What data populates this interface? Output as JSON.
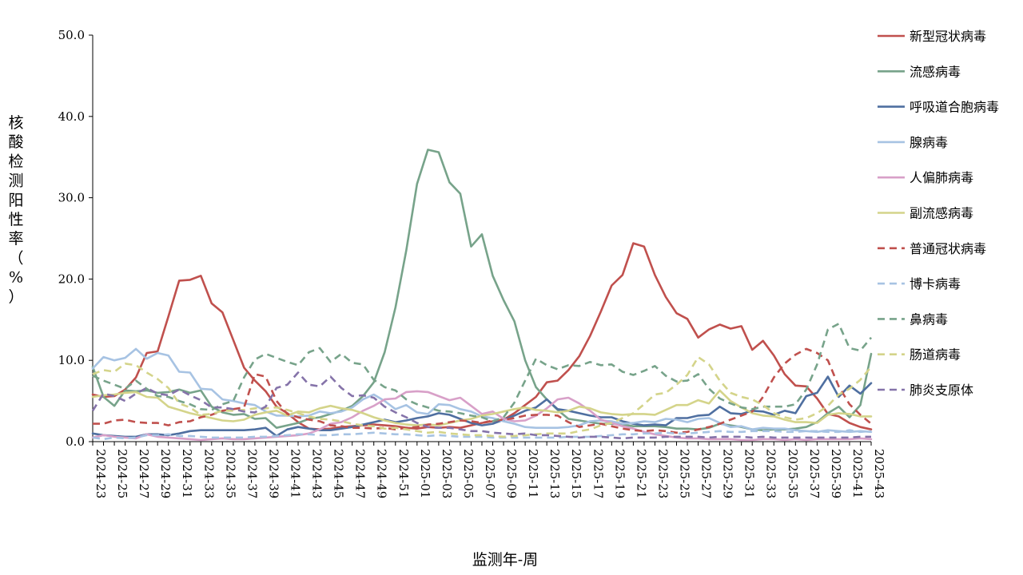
{
  "chart_data": {
    "type": "line",
    "xlabel": "监测年-周",
    "ylabel": "核酸检测阳性率（%）",
    "ylim": [
      0,
      50
    ],
    "yticks": [
      "0.0",
      "10.0",
      "20.0",
      "30.0",
      "40.0",
      "50.0"
    ],
    "grid": false,
    "legend_position": "right",
    "x": [
      "2024-23",
      "2024-24",
      "2024-25",
      "2024-26",
      "2024-27",
      "2024-28",
      "2024-29",
      "2024-30",
      "2024-31",
      "2024-32",
      "2024-33",
      "2024-34",
      "2024-35",
      "2024-36",
      "2024-37",
      "2024-38",
      "2024-39",
      "2024-40",
      "2024-41",
      "2024-42",
      "2024-43",
      "2024-44",
      "2024-45",
      "2024-46",
      "2024-47",
      "2024-48",
      "2024-49",
      "2024-50",
      "2024-51",
      "2024-52",
      "2025-01",
      "2025-02",
      "2025-03",
      "2025-04",
      "2025-05",
      "2025-06",
      "2025-07",
      "2025-08",
      "2025-09",
      "2025-10",
      "2025-11",
      "2025-12",
      "2025-13",
      "2025-14",
      "2025-15",
      "2025-16",
      "2025-17",
      "2025-18",
      "2025-19",
      "2025-20",
      "2025-21",
      "2025-22",
      "2025-23",
      "2025-24",
      "2025-25",
      "2025-26",
      "2025-27",
      "2025-28",
      "2025-29",
      "2025-30",
      "2025-31",
      "2025-32",
      "2025-33",
      "2025-34",
      "2025-35",
      "2025-36",
      "2025-37",
      "2025-38",
      "2025-39",
      "2025-40",
      "2025-41",
      "2025-42",
      "2025-43"
    ],
    "xtick_labels": [
      "2024-23",
      "2024-25",
      "2024-27",
      "2024-29",
      "2024-31",
      "2024-33",
      "2024-35",
      "2024-37",
      "2024-39",
      "2024-41",
      "2024-43",
      "2024-45",
      "2024-47",
      "2024-49",
      "2024-51",
      "2025-01",
      "2025-03",
      "2025-05",
      "2025-07",
      "2025-09",
      "2025-11",
      "2025-13",
      "2025-15",
      "2025-17",
      "2025-19",
      "2025-21",
      "2025-23",
      "2025-25",
      "2025-27",
      "2025-29",
      "2025-31",
      "2025-33",
      "2025-35",
      "2025-37",
      "2025-39",
      "2025-41",
      "2025-43"
    ],
    "series": [
      {
        "name": "新型冠状病毒",
        "color": "#c0504d",
        "dash": false,
        "values": [
          5.8,
          5.5,
          5.6,
          6.4,
          7.9,
          10.9,
          11.1,
          15.4,
          19.8,
          19.9,
          20.4,
          17.0,
          15.9,
          12.5,
          9.1,
          7.5,
          6.2,
          4.3,
          3.5,
          2.4,
          1.6,
          1.5,
          1.6,
          1.8,
          1.9,
          2.0,
          2.1,
          2.0,
          1.9,
          1.7,
          1.6,
          1.8,
          1.7,
          1.8,
          1.7,
          2.0,
          2.3,
          2.5,
          2.7,
          3.5,
          4.5,
          5.5,
          7.3,
          7.5,
          8.8,
          10.5,
          13.0,
          16.0,
          19.2,
          20.5,
          24.4,
          24.0,
          20.5,
          17.8,
          15.8,
          15.1,
          12.8,
          13.8,
          14.4,
          13.9,
          14.2,
          11.3,
          12.4,
          10.6,
          8.3,
          6.9,
          6.8,
          5.3,
          3.4,
          3.1,
          2.3,
          1.8,
          1.5
        ]
      },
      {
        "name": "流感病毒",
        "color": "#77a38a",
        "dash": false,
        "values": [
          9.2,
          5.5,
          4.4,
          6.3,
          6.2,
          6.3,
          6.0,
          6.1,
          6.4,
          6.0,
          6.3,
          4.3,
          3.6,
          3.3,
          3.4,
          2.8,
          2.9,
          1.7,
          2.0,
          2.3,
          2.8,
          3.0,
          3.4,
          3.8,
          4.4,
          5.6,
          7.3,
          11.0,
          16.5,
          23.5,
          31.7,
          35.9,
          35.6,
          31.9,
          30.5,
          24.0,
          25.5,
          20.4,
          17.4,
          14.8,
          10.0,
          6.7,
          5.2,
          3.9,
          2.8,
          2.6,
          2.4,
          2.2,
          2.2,
          2.1,
          1.9,
          1.9,
          1.9,
          1.8,
          1.6,
          1.6,
          1.5,
          1.7,
          2.2,
          2.0,
          1.8,
          1.5,
          1.4,
          1.5,
          1.5,
          1.6,
          1.8,
          2.4,
          3.5,
          4.3,
          3.0,
          4.5,
          10.8
        ]
      },
      {
        "name": "呼吸道合胞病毒",
        "color": "#4f6fa0",
        "dash": false,
        "values": [
          1.0,
          0.8,
          0.7,
          0.6,
          0.6,
          0.9,
          0.9,
          0.8,
          1.0,
          1.3,
          1.4,
          1.4,
          1.4,
          1.4,
          1.4,
          1.5,
          1.7,
          0.7,
          1.5,
          1.8,
          1.6,
          1.4,
          1.4,
          1.6,
          1.8,
          2.1,
          2.4,
          2.7,
          2.4,
          2.6,
          2.9,
          3.1,
          3.5,
          3.3,
          2.8,
          2.3,
          2.0,
          2.2,
          2.7,
          3.2,
          3.8,
          4.2,
          5.2,
          4.0,
          3.8,
          3.5,
          3.2,
          3.0,
          3.0,
          2.5,
          2.2,
          2.0,
          2.1,
          2.0,
          2.9,
          2.9,
          3.2,
          3.3,
          4.3,
          3.5,
          3.4,
          3.8,
          3.7,
          3.3,
          3.8,
          3.5,
          5.6,
          6.0,
          8.0,
          5.5,
          6.9,
          5.9,
          7.2
        ]
      },
      {
        "name": "腺病毒",
        "color": "#a7c3e3",
        "dash": false,
        "values": [
          9.0,
          10.4,
          10.0,
          10.3,
          11.4,
          10.2,
          10.9,
          10.6,
          8.6,
          8.5,
          6.5,
          6.4,
          5.2,
          5.0,
          4.7,
          4.5,
          3.7,
          3.2,
          3.2,
          3.1,
          3.2,
          3.7,
          3.5,
          3.7,
          4.2,
          5.2,
          5.8,
          5.0,
          4.0,
          4.5,
          3.6,
          3.4,
          4.6,
          4.5,
          4.0,
          3.7,
          3.1,
          2.9,
          2.5,
          2.2,
          1.8,
          1.7,
          1.7,
          1.7,
          1.8,
          2.0,
          2.5,
          2.6,
          2.5,
          2.2,
          2.3,
          2.5,
          2.4,
          2.8,
          2.7,
          2.4,
          2.8,
          2.9,
          2.3,
          1.8,
          1.9,
          1.5,
          1.7,
          1.6,
          1.6,
          1.4,
          1.3,
          1.2,
          1.4,
          1.3,
          1.2,
          1.3,
          1.2
        ]
      },
      {
        "name": "人偏肺病毒",
        "color": "#d8a0c8",
        "dash": false,
        "values": [
          0.5,
          0.8,
          0.6,
          0.5,
          0.4,
          0.9,
          0.6,
          0.5,
          0.4,
          0.3,
          0.2,
          0.3,
          0.4,
          0.3,
          0.3,
          0.4,
          0.5,
          0.6,
          0.7,
          0.8,
          1.0,
          1.5,
          2.2,
          2.4,
          3.0,
          3.8,
          4.4,
          5.2,
          5.3,
          6.1,
          6.2,
          6.1,
          5.6,
          5.1,
          5.4,
          4.4,
          3.4,
          3.7,
          2.8,
          2.5,
          2.6,
          3.2,
          4.1,
          5.2,
          5.4,
          4.7,
          3.8,
          2.7,
          2.3,
          1.9,
          1.6,
          1.2,
          0.9,
          0.7,
          0.5,
          0.4,
          0.4,
          0.3,
          0.3,
          0.3,
          0.2,
          0.2,
          0.3,
          0.3,
          0.2,
          0.3,
          0.2,
          0.3,
          0.3,
          0.3,
          0.3,
          0.4,
          0.3
        ]
      },
      {
        "name": "副流感病毒",
        "color": "#d4d48a",
        "dash": false,
        "values": [
          5.5,
          5.7,
          5.8,
          6.0,
          6.1,
          5.5,
          5.4,
          4.3,
          3.9,
          3.5,
          3.2,
          2.9,
          2.6,
          2.5,
          2.7,
          3.3,
          3.6,
          3.8,
          3.2,
          3.7,
          3.6,
          4.1,
          4.4,
          4.1,
          3.9,
          3.5,
          3.0,
          2.6,
          2.3,
          2.1,
          2.0,
          2.1,
          2.0,
          2.3,
          2.6,
          2.8,
          3.2,
          3.4,
          3.7,
          4.0,
          4.2,
          3.9,
          3.8,
          3.6,
          3.8,
          4.3,
          4.1,
          3.6,
          3.4,
          3.3,
          3.4,
          3.4,
          3.3,
          3.9,
          4.5,
          4.5,
          5.1,
          4.7,
          6.3,
          5.0,
          4.2,
          3.5,
          3.2,
          3.1,
          2.7,
          2.4,
          2.4,
          2.3,
          3.3,
          3.5,
          3.4,
          3.1,
          3.1
        ]
      },
      {
        "name": "普通冠状病毒",
        "color": "#c0504d",
        "dash": true,
        "values": [
          2.2,
          2.2,
          2.6,
          2.7,
          2.4,
          2.3,
          2.3,
          2.0,
          2.4,
          2.5,
          3.0,
          3.3,
          3.8,
          4.0,
          4.2,
          8.3,
          8.0,
          5.0,
          3.4,
          3.0,
          2.7,
          2.5,
          2.0,
          1.9,
          1.7,
          1.7,
          1.6,
          1.7,
          1.5,
          1.7,
          1.8,
          2.1,
          2.2,
          2.4,
          2.6,
          2.5,
          2.3,
          2.6,
          2.7,
          2.9,
          3.2,
          3.3,
          3.3,
          3.2,
          2.4,
          1.8,
          2.0,
          2.2,
          1.9,
          1.6,
          1.4,
          1.3,
          1.4,
          1.3,
          1.1,
          1.2,
          1.5,
          1.8,
          2.2,
          2.7,
          3.2,
          3.7,
          5.5,
          7.9,
          9.6,
          10.7,
          11.4,
          10.9,
          10.0,
          6.8,
          4.6,
          3.3,
          2.2
        ]
      },
      {
        "name": "博卡病毒",
        "color": "#a7c3e3",
        "dash": true,
        "values": [
          0.5,
          0.3,
          0.5,
          0.4,
          0.5,
          0.8,
          0.8,
          0.9,
          0.7,
          0.7,
          0.6,
          0.5,
          0.5,
          0.5,
          0.5,
          0.6,
          0.6,
          0.7,
          0.8,
          0.9,
          0.9,
          0.8,
          0.8,
          0.9,
          0.9,
          1.0,
          1.1,
          1.0,
          0.9,
          0.9,
          0.8,
          0.7,
          0.8,
          0.7,
          0.6,
          0.6,
          0.6,
          0.5,
          0.5,
          0.5,
          0.5,
          0.5,
          0.5,
          0.5,
          0.6,
          0.6,
          0.6,
          0.7,
          0.8,
          0.9,
          0.9,
          1.0,
          1.0,
          1.1,
          1.0,
          1.0,
          1.1,
          1.2,
          1.3,
          1.2,
          1.2,
          1.3,
          1.3,
          1.3,
          1.2,
          1.2,
          1.3,
          1.3,
          1.2,
          1.2,
          1.4,
          1.2,
          1.3
        ]
      },
      {
        "name": "鼻病毒",
        "color": "#77a38a",
        "dash": true,
        "values": [
          8.1,
          7.5,
          7.0,
          6.5,
          7.5,
          6.5,
          5.6,
          5.5,
          5.0,
          4.6,
          4.0,
          3.9,
          4.6,
          5.0,
          7.9,
          10.1,
          10.8,
          10.3,
          9.8,
          9.4,
          11.0,
          11.5,
          9.8,
          10.8,
          9.7,
          9.5,
          7.6,
          6.7,
          6.3,
          5.2,
          4.6,
          4.2,
          3.8,
          3.7,
          3.5,
          3.2,
          3.0,
          2.5,
          3.0,
          4.8,
          7.5,
          10.2,
          9.4,
          8.9,
          9.4,
          9.3,
          9.8,
          9.4,
          9.5,
          8.6,
          8.2,
          8.7,
          9.3,
          8.1,
          7.4,
          7.5,
          8.3,
          6.5,
          5.3,
          4.7,
          4.2,
          4.0,
          4.3,
          4.3,
          4.3,
          4.6,
          6.4,
          9.5,
          13.8,
          14.5,
          11.5,
          11.2,
          12.8
        ]
      },
      {
        "name": "肠道病毒",
        "color": "#d4d48a",
        "dash": true,
        "values": [
          8.3,
          8.8,
          8.6,
          9.6,
          9.4,
          8.5,
          7.7,
          6.6,
          4.7,
          4.2,
          3.3,
          3.4,
          3.8,
          3.8,
          3.9,
          4.1,
          4.1,
          4.2,
          3.9,
          3.5,
          3.1,
          2.8,
          2.7,
          2.5,
          2.2,
          2.0,
          1.9,
          1.6,
          1.7,
          1.5,
          1.3,
          1.1,
          1.2,
          1.0,
          0.9,
          0.8,
          0.8,
          0.7,
          0.6,
          0.7,
          0.8,
          0.9,
          1.0,
          1.0,
          1.0,
          1.3,
          1.5,
          2.0,
          2.3,
          2.9,
          3.5,
          4.6,
          5.8,
          6.0,
          7.0,
          8.2,
          10.4,
          9.5,
          7.5,
          6.0,
          5.5,
          5.2,
          4.5,
          3.5,
          3.0,
          2.7,
          2.9,
          3.5,
          4.4,
          5.8,
          6.5,
          7.6,
          9.2
        ]
      },
      {
        "name": "肺炎支原体",
        "color": "#8573a9",
        "dash": true,
        "values": [
          3.8,
          5.9,
          5.6,
          5.0,
          5.9,
          6.6,
          5.9,
          5.7,
          6.4,
          5.7,
          5.1,
          4.2,
          4.2,
          4.0,
          3.7,
          3.6,
          4.3,
          6.6,
          7.0,
          8.5,
          7.0,
          6.8,
          8.0,
          6.6,
          5.6,
          5.7,
          5.4,
          4.3,
          3.6,
          3.0,
          2.3,
          1.8,
          1.7,
          1.7,
          1.5,
          1.3,
          1.3,
          1.1,
          1.0,
          0.9,
          1.0,
          0.8,
          0.8,
          0.7,
          0.6,
          0.5,
          0.6,
          0.6,
          0.5,
          0.4,
          0.5,
          0.5,
          0.5,
          0.6,
          0.6,
          0.6,
          0.6,
          0.5,
          0.6,
          0.6,
          0.6,
          0.5,
          0.6,
          0.5,
          0.5,
          0.5,
          0.5,
          0.5,
          0.5,
          0.5,
          0.5,
          0.6,
          0.6
        ]
      }
    ]
  }
}
